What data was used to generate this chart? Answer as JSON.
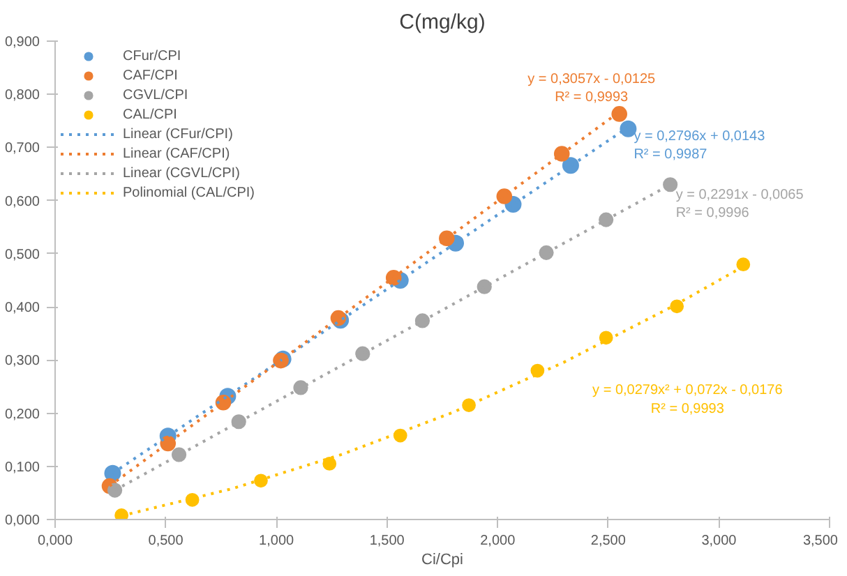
{
  "chart_data": {
    "type": "scatter",
    "title": "C(mg/kg)",
    "xlabel": "Ci/Cpi",
    "xlim": [
      0,
      3.5
    ],
    "ylim": [
      0,
      0.9
    ],
    "xticks": [
      {
        "value": 0,
        "label": "0,000"
      },
      {
        "value": 0.5,
        "label": "0,500"
      },
      {
        "value": 1,
        "label": "1,000"
      },
      {
        "value": 1.5,
        "label": "1,500"
      },
      {
        "value": 2,
        "label": "2,000"
      },
      {
        "value": 2.5,
        "label": "2,500"
      },
      {
        "value": 3,
        "label": "3,000"
      },
      {
        "value": 3.5,
        "label": "3,500"
      }
    ],
    "yticks": [
      {
        "value": 0,
        "label": "0,000"
      },
      {
        "value": 0.1,
        "label": "0,100"
      },
      {
        "value": 0.2,
        "label": "0,200"
      },
      {
        "value": 0.3,
        "label": "0,300"
      },
      {
        "value": 0.4,
        "label": "0,400"
      },
      {
        "value": 0.5,
        "label": "0,500"
      },
      {
        "value": 0.6,
        "label": "0,600"
      },
      {
        "value": 0.7,
        "label": "0,700"
      },
      {
        "value": 0.8,
        "label": "0,800"
      },
      {
        "value": 0.9,
        "label": "0,900"
      }
    ],
    "grid": false,
    "legend": "top left",
    "series": [
      {
        "name": "CFur/CPI",
        "color": "#5b9bd5",
        "x": [
          0.26,
          0.51,
          0.78,
          1.03,
          1.29,
          1.56,
          1.81,
          2.07,
          2.33,
          2.59
        ],
        "values": [
          0.087,
          0.157,
          0.232,
          0.302,
          0.375,
          0.45,
          0.52,
          0.593,
          0.666,
          0.735
        ],
        "marker": "circle"
      },
      {
        "name": "CAF/CPI",
        "color": "#ed7d31",
        "x": [
          0.246,
          0.51,
          0.76,
          1.02,
          1.28,
          1.53,
          1.77,
          2.03,
          2.29,
          2.55
        ],
        "values": [
          0.063,
          0.143,
          0.22,
          0.299,
          0.379,
          0.455,
          0.529,
          0.608,
          0.688,
          0.763
        ],
        "marker": "circle"
      },
      {
        "name": "CGVL/CPI",
        "color": "#a5a5a5",
        "x": [
          0.27,
          0.56,
          0.83,
          1.11,
          1.39,
          1.66,
          1.94,
          2.22,
          2.49,
          2.78
        ],
        "values": [
          0.055,
          0.122,
          0.184,
          0.248,
          0.312,
          0.374,
          0.438,
          0.502,
          0.564,
          0.63
        ],
        "marker": "circle"
      },
      {
        "name": "CAL/CPI",
        "color": "#ffc000",
        "x": [
          0.3,
          0.62,
          0.93,
          1.24,
          1.56,
          1.87,
          2.18,
          2.49,
          2.81,
          3.11
        ],
        "values": [
          0.008,
          0.037,
          0.073,
          0.105,
          0.158,
          0.215,
          0.28,
          0.342,
          0.401,
          0.48
        ],
        "marker": "circle"
      },
      {
        "name": "Linear (CFur/CPI)",
        "type": "line",
        "line_style": "dotted",
        "color": "#5b9bd5",
        "x": [
          0.26,
          2.59
        ],
        "values": [
          0.087,
          0.738
        ]
      },
      {
        "name": "Linear (CAF/CPI)",
        "type": "line",
        "line_style": "dotted",
        "color": "#ed7d31",
        "x": [
          0.246,
          2.55
        ],
        "values": [
          0.063,
          0.767
        ]
      },
      {
        "name": "Linear (CGVL/CPI)",
        "type": "line",
        "line_style": "dotted",
        "color": "#a5a5a5",
        "x": [
          0.27,
          2.78
        ],
        "values": [
          0.055,
          0.63
        ]
      },
      {
        "name": "Polinomial (CAL/CPI)",
        "type": "line",
        "line_style": "dotted",
        "color": "#ffc000",
        "x": [
          0.3,
          0.8,
          1.3,
          1.8,
          2.3,
          2.8,
          3.11
        ],
        "values": [
          0.007,
          0.058,
          0.123,
          0.202,
          0.296,
          0.403,
          0.476
        ]
      }
    ],
    "annotations": [
      "y = 0,2796x + 0,0143\nR² = 0,9987",
      "y = 0,3057x - 0,0125\nR² = 0,9993",
      "y = 0,2291x - 0,0065\nR² = 0,9996",
      "y = 0,0279x² + 0,072x - 0,0176\nR² = 0,9993"
    ]
  }
}
